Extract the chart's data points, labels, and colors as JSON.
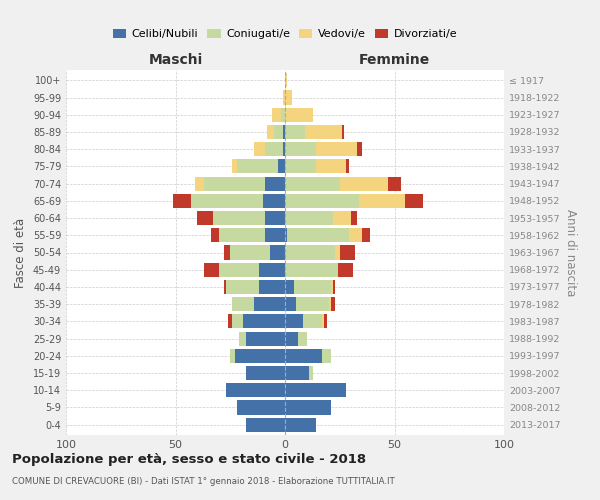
{
  "age_groups": [
    "0-4",
    "5-9",
    "10-14",
    "15-19",
    "20-24",
    "25-29",
    "30-34",
    "35-39",
    "40-44",
    "45-49",
    "50-54",
    "55-59",
    "60-64",
    "65-69",
    "70-74",
    "75-79",
    "80-84",
    "85-89",
    "90-94",
    "95-99",
    "100+"
  ],
  "birth_years": [
    "2013-2017",
    "2008-2012",
    "2003-2007",
    "1998-2002",
    "1993-1997",
    "1988-1992",
    "1983-1987",
    "1978-1982",
    "1973-1977",
    "1968-1972",
    "1963-1967",
    "1958-1962",
    "1953-1957",
    "1948-1952",
    "1943-1947",
    "1938-1942",
    "1933-1937",
    "1928-1932",
    "1923-1927",
    "1918-1922",
    "≤ 1917"
  ],
  "colors": {
    "celibe": "#4472a8",
    "coniugato": "#c5d9a0",
    "vedovo": "#f5d480",
    "divorziato": "#c0392b"
  },
  "maschi": {
    "celibe": [
      18,
      22,
      27,
      18,
      23,
      18,
      19,
      14,
      12,
      12,
      7,
      9,
      9,
      10,
      9,
      3,
      1,
      1,
      0,
      0,
      0
    ],
    "coniugato": [
      0,
      0,
      0,
      0,
      2,
      3,
      5,
      10,
      15,
      18,
      18,
      21,
      24,
      33,
      28,
      19,
      8,
      4,
      2,
      0,
      0
    ],
    "vedovo": [
      0,
      0,
      0,
      0,
      0,
      0,
      0,
      0,
      0,
      0,
      0,
      0,
      0,
      0,
      4,
      2,
      5,
      3,
      4,
      1,
      0
    ],
    "divorziato": [
      0,
      0,
      0,
      0,
      0,
      0,
      2,
      0,
      1,
      7,
      3,
      4,
      7,
      8,
      0,
      0,
      0,
      0,
      0,
      0,
      0
    ]
  },
  "femmine": {
    "celibe": [
      14,
      21,
      28,
      11,
      17,
      6,
      8,
      5,
      4,
      0,
      0,
      1,
      0,
      0,
      0,
      0,
      0,
      0,
      0,
      0,
      0
    ],
    "coniugato": [
      0,
      0,
      0,
      2,
      4,
      4,
      9,
      15,
      17,
      24,
      23,
      28,
      22,
      34,
      25,
      14,
      14,
      9,
      0,
      0,
      0
    ],
    "vedovo": [
      0,
      0,
      0,
      0,
      0,
      0,
      1,
      1,
      1,
      0,
      2,
      6,
      8,
      21,
      22,
      14,
      19,
      17,
      13,
      3,
      1
    ],
    "divorziato": [
      0,
      0,
      0,
      0,
      0,
      0,
      1,
      2,
      1,
      7,
      7,
      4,
      3,
      8,
      6,
      1,
      2,
      1,
      0,
      0,
      0
    ]
  },
  "xlim": 100,
  "title": "Popolazione per età, sesso e stato civile - 2018",
  "subtitle": "COMUNE DI CREVACUORE (BI) - Dati ISTAT 1° gennaio 2018 - Elaborazione TUTTITALIA.IT",
  "ylabel_left": "Fasce di età",
  "ylabel_right": "Anni di nascita",
  "xlabel_left": "Maschi",
  "xlabel_right": "Femmine",
  "bg_color": "#f0f0f0",
  "plot_bg": "#ffffff",
  "grid_color": "#cccccc"
}
